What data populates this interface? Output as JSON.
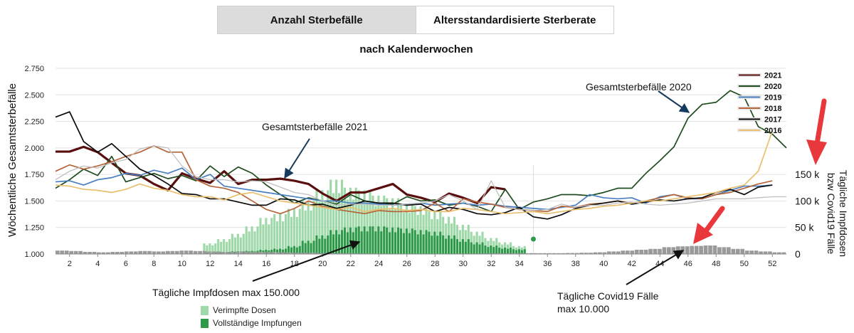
{
  "tabs": [
    {
      "label": "Anzahl Sterbefälle",
      "active": true
    },
    {
      "label": "Altersstandardisierte Sterberate",
      "active": false
    }
  ],
  "chart_data": {
    "type": "line",
    "title": "",
    "subtitle": "nach Kalenderwochen",
    "ylabel": "Wöchentliche Gesamtsterbefälle",
    "ylabel_right": [
      "Tägliche Impfdosen",
      "bzw Covid19 Fälle"
    ],
    "ylim": [
      1000,
      2750
    ],
    "yticks": [
      1000,
      1250,
      1500,
      1750,
      2000,
      2250,
      2500,
      2750
    ],
    "ytick_labels": [
      "1.000",
      "1.250",
      "1.500",
      "1.750",
      "2.000",
      "2.250",
      "2.500",
      "2.750"
    ],
    "y2ticks": [
      0,
      50000,
      100000,
      150000
    ],
    "y2tick_labels": [
      "0",
      "50 k",
      "100 k",
      "150 k"
    ],
    "xlim": [
      1,
      53
    ],
    "xticks": [
      2,
      4,
      6,
      8,
      10,
      12,
      14,
      16,
      18,
      20,
      22,
      24,
      26,
      28,
      30,
      32,
      34,
      36,
      38,
      40,
      42,
      44,
      46,
      48,
      50,
      52
    ],
    "grid": true,
    "legend_position": "top-right",
    "series": [
      {
        "name": "2021",
        "color": "#5a0f0f",
        "x": [
          1,
          2,
          3,
          4,
          5,
          6,
          7,
          8,
          9,
          10,
          11,
          12,
          13,
          14,
          15,
          16,
          17,
          18,
          19,
          20,
          21,
          22,
          23,
          24,
          25,
          26,
          27,
          28,
          29,
          30,
          31,
          32,
          33
        ],
        "y": [
          1965,
          1965,
          2010,
          1960,
          1860,
          1760,
          1740,
          1660,
          1600,
          1760,
          1710,
          1670,
          1780,
          1660,
          1700,
          1700,
          1710,
          1690,
          1660,
          1570,
          1500,
          1580,
          1580,
          1620,
          1660,
          1560,
          1530,
          1490,
          1570,
          1530,
          1480,
          1630,
          1610
        ]
      },
      {
        "name": "2020",
        "color": "#1f4d1f",
        "x": [
          1,
          2,
          3,
          4,
          5,
          6,
          7,
          8,
          9,
          10,
          11,
          12,
          13,
          14,
          15,
          16,
          17,
          18,
          19,
          20,
          21,
          22,
          23,
          24,
          25,
          26,
          27,
          28,
          29,
          30,
          31,
          32,
          33,
          34,
          35,
          36,
          37,
          38,
          39,
          40,
          41,
          42,
          43,
          44,
          45,
          46,
          47,
          48,
          49,
          50,
          51,
          52,
          53
        ],
        "y": [
          1620,
          1700,
          1800,
          1740,
          1920,
          1680,
          1720,
          1760,
          1710,
          1740,
          1690,
          1830,
          1730,
          1820,
          1760,
          1650,
          1560,
          1480,
          1530,
          1500,
          1470,
          1560,
          1500,
          1480,
          1470,
          1540,
          1500,
          1510,
          1460,
          1480,
          1450,
          1400,
          1610,
          1420,
          1490,
          1520,
          1560,
          1560,
          1550,
          1580,
          1620,
          1620,
          1760,
          1880,
          2010,
          2280,
          2410,
          2430,
          2540,
          2480,
          2200,
          2130,
          2000
        ]
      },
      {
        "name": "2019",
        "color": "#4a7fc1",
        "x": [
          1,
          2,
          3,
          4,
          5,
          6,
          7,
          8,
          9,
          10,
          11,
          12,
          13,
          14,
          15,
          16,
          17,
          18,
          19,
          20,
          21,
          22,
          23,
          24,
          25,
          26,
          27,
          28,
          29,
          30,
          31,
          32,
          33,
          34,
          35,
          36,
          37,
          38,
          39,
          40,
          41,
          42,
          43,
          44,
          45,
          46,
          47,
          48,
          49,
          50,
          51,
          52
        ],
        "y": [
          1680,
          1690,
          1650,
          1700,
          1720,
          1760,
          1740,
          1790,
          1760,
          1810,
          1700,
          1750,
          1640,
          1620,
          1600,
          1580,
          1560,
          1540,
          1520,
          1500,
          1500,
          1480,
          1480,
          1470,
          1460,
          1470,
          1480,
          1460,
          1470,
          1480,
          1460,
          1470,
          1450,
          1440,
          1430,
          1420,
          1440,
          1460,
          1560,
          1530,
          1520,
          1530,
          1480,
          1540,
          1560,
          1520,
          1520,
          1560,
          1600,
          1640,
          1640,
          1650
        ]
      },
      {
        "name": "2018",
        "color": "#b5653a",
        "x": [
          1,
          2,
          3,
          4,
          5,
          6,
          7,
          8,
          9,
          10,
          11,
          12,
          13,
          14,
          15,
          16,
          17,
          18,
          19,
          20,
          21,
          22,
          23,
          24,
          25,
          26,
          27,
          28,
          29,
          30,
          31,
          32,
          33,
          34,
          35,
          36,
          37,
          38,
          39,
          40,
          41,
          42,
          43,
          44,
          45,
          46,
          47,
          48,
          49,
          50,
          51,
          52
        ],
        "y": [
          1780,
          1840,
          1800,
          1830,
          1870,
          1920,
          1960,
          2020,
          1960,
          1960,
          1700,
          1640,
          1620,
          1580,
          1500,
          1420,
          1380,
          1430,
          1500,
          1450,
          1420,
          1400,
          1380,
          1410,
          1400,
          1400,
          1410,
          1480,
          1400,
          1520,
          1490,
          1470,
          1440,
          1420,
          1410,
          1400,
          1450,
          1440,
          1470,
          1480,
          1500,
          1480,
          1500,
          1530,
          1560,
          1530,
          1520,
          1560,
          1580,
          1620,
          1660,
          1690
        ]
      },
      {
        "name": "2017",
        "color": "#0a0a0a",
        "x": [
          1,
          2,
          3,
          4,
          5,
          6,
          7,
          8,
          9,
          10,
          11,
          12,
          13,
          14,
          15,
          16,
          17,
          18,
          19,
          20,
          21,
          22,
          23,
          24,
          25,
          26,
          27,
          28,
          29,
          30,
          31,
          32,
          33,
          34,
          35,
          36,
          37,
          38,
          39,
          40,
          41,
          42,
          43,
          44,
          45,
          46,
          47,
          48,
          49,
          50,
          51,
          52
        ],
        "y": [
          2290,
          2340,
          2060,
          1960,
          2040,
          1920,
          1800,
          1740,
          1660,
          1570,
          1560,
          1520,
          1520,
          1490,
          1460,
          1460,
          1520,
          1510,
          1460,
          1470,
          1430,
          1460,
          1500,
          1480,
          1480,
          1460,
          1470,
          1400,
          1440,
          1420,
          1380,
          1370,
          1390,
          1440,
          1350,
          1330,
          1370,
          1430,
          1460,
          1480,
          1500,
          1470,
          1490,
          1510,
          1500,
          1520,
          1530,
          1580,
          1610,
          1560,
          1630,
          1650
        ]
      },
      {
        "name": "2016",
        "color": "#e8c070",
        "x": [
          1,
          2,
          3,
          4,
          5,
          6,
          7,
          8,
          9,
          10,
          11,
          12,
          13,
          14,
          15,
          16,
          17,
          18,
          19,
          20,
          21,
          22,
          23,
          24,
          25,
          26,
          27,
          28,
          29,
          30,
          31,
          32,
          33,
          34,
          35,
          36,
          37,
          38,
          39,
          40,
          41,
          42,
          43,
          44,
          45,
          46,
          47,
          48,
          49,
          50,
          51,
          52
        ],
        "y": [
          1650,
          1640,
          1610,
          1600,
          1580,
          1610,
          1660,
          1620,
          1600,
          1560,
          1540,
          1540,
          1510,
          1560,
          1580,
          1540,
          1500,
          1480,
          1460,
          1440,
          1420,
          1440,
          1400,
          1420,
          1430,
          1410,
          1420,
          1400,
          1400,
          1430,
          1420,
          1400,
          1380,
          1390,
          1400,
          1380,
          1400,
          1420,
          1430,
          1450,
          1460,
          1480,
          1500,
          1500,
          1520,
          1540,
          1560,
          1580,
          1620,
          1650,
          1780,
          2160
        ]
      },
      {
        "name": "",
        "color": "#c0c0c0",
        "x": [
          1,
          2,
          3,
          4,
          5,
          6,
          7,
          8,
          9,
          10,
          11,
          12,
          13,
          14,
          15,
          16,
          17,
          18,
          19,
          20,
          21,
          22,
          23,
          24,
          25,
          26,
          27,
          28,
          29,
          30,
          31,
          32,
          33,
          34,
          35,
          36,
          37,
          38,
          39,
          40,
          41,
          42,
          43,
          44,
          45,
          46,
          47,
          48,
          49,
          50,
          51,
          52,
          53
        ],
        "y": [
          1700,
          1780,
          1830,
          1810,
          1860,
          1890,
          1990,
          2020,
          2000,
          1830,
          1730,
          1700,
          1700,
          1680,
          1690,
          1680,
          1630,
          1580,
          1560,
          1500,
          1460,
          1470,
          1470,
          1460,
          1460,
          1470,
          1480,
          1500,
          1560,
          1500,
          1420,
          1690,
          1440,
          1420,
          1410,
          1420,
          1470,
          1440,
          1460,
          1460,
          1480,
          1490,
          1470,
          1460,
          1470,
          1480,
          1500,
          1520,
          1520,
          1520,
          1530,
          1540,
          1540
        ]
      }
    ],
    "bars": [
      {
        "name": "Verimpfte Dosen",
        "color": "#9fd9a9",
        "unit": "daily doses",
        "week_start": 11.5,
        "week_end": 34.5,
        "weekly_values": [
          20000,
          28000,
          38000,
          52000,
          68000,
          75000,
          85000,
          100000,
          120000,
          140000,
          125000,
          120000,
          110000,
          105000,
          95000,
          90000,
          80000,
          70000,
          55000,
          42000,
          30000,
          22000,
          15000
        ]
      },
      {
        "name": "Vollständige Impfungen",
        "color": "#2e9a49",
        "unit": "daily doses",
        "week_start": 11.5,
        "week_end": 34.5,
        "weekly_values": [
          3000,
          4000,
          5000,
          6000,
          8000,
          10000,
          15000,
          25000,
          35000,
          45000,
          50000,
          52000,
          52000,
          50000,
          48000,
          45000,
          42000,
          35000,
          28000,
          22000,
          16000,
          12000,
          9000
        ]
      },
      {
        "name": "Tägliche Covid19 Fälle",
        "color": "#9a9a9a",
        "unit": "daily cases",
        "week_start": 1,
        "week_end": 53,
        "weekly_values": [
          4000,
          3500,
          2500,
          2000,
          2500,
          3000,
          3500,
          3000,
          3500,
          4000,
          3500,
          3000,
          2500,
          3000,
          2500,
          2500,
          2000,
          1500,
          1500,
          1000,
          1000,
          800,
          600,
          500,
          400,
          300,
          300,
          300,
          400,
          500,
          500,
          700,
          800,
          900,
          1000,
          1000,
          1000,
          1200,
          1500,
          2000,
          3000,
          4000,
          5000,
          6000,
          8000,
          9000,
          9500,
          10000,
          8000,
          6000,
          4000,
          3000,
          2000
        ]
      }
    ]
  },
  "annotations": {
    "total_2021": "Gesamtsterbefälle 2021",
    "total_2020": "Gesamtsterbefälle 2020",
    "vaccine_max": "Tägliche Impfdosen max 150.000",
    "covid_max_line1": "Tägliche Covid19 Fälle",
    "covid_max_line2": "max 10.000"
  },
  "bottom_legend": [
    {
      "label": "Verimpfte Dosen",
      "color": "#9fd9a9"
    },
    {
      "label": "Vollständige Impfungen",
      "color": "#2e9a49"
    }
  ],
  "colors": {
    "arrow_red": "#e8383b",
    "arrow_navy": "#163a5c"
  }
}
